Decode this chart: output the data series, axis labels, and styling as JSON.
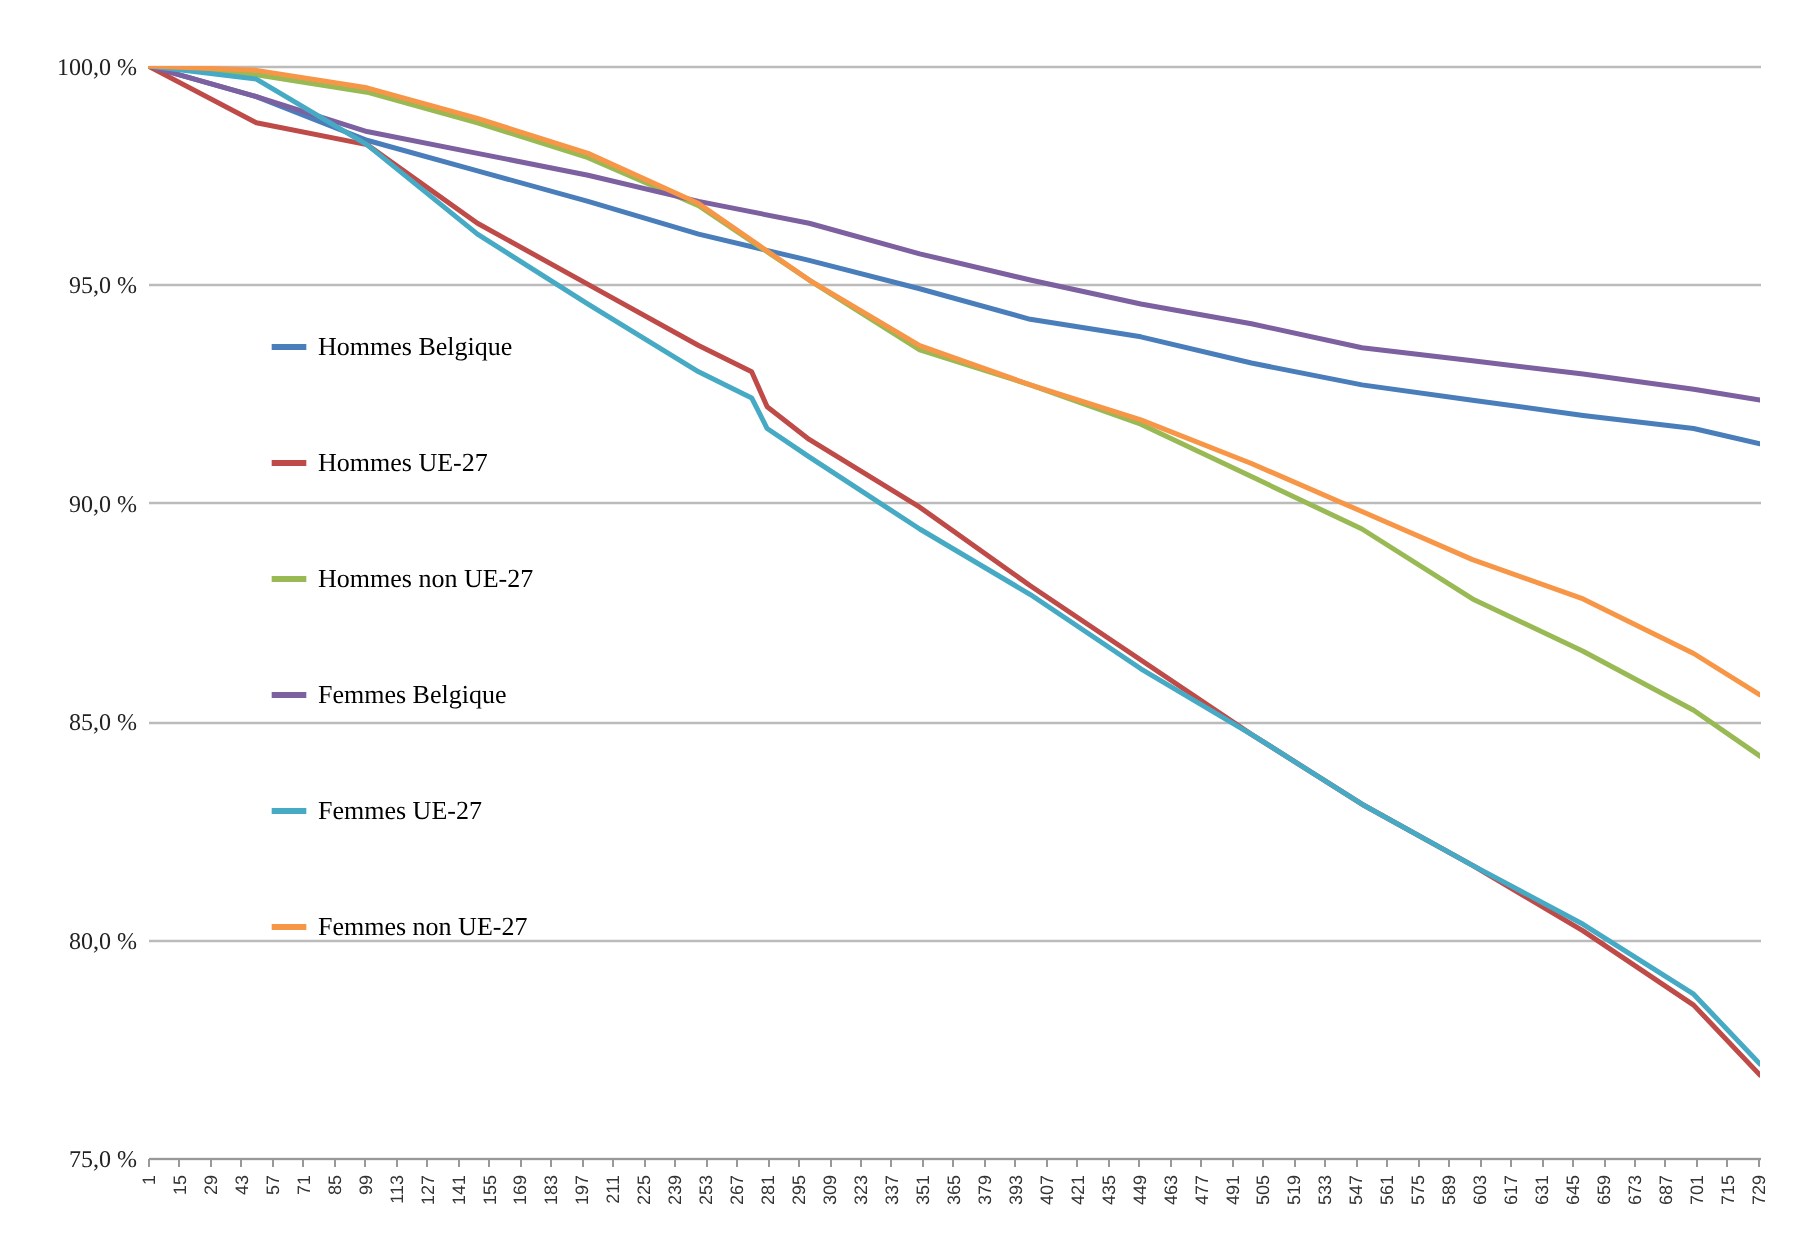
{
  "chart_data": {
    "type": "line",
    "xlim": [
      1,
      730
    ],
    "xticks": [
      1,
      15,
      29,
      43,
      57,
      71,
      85,
      99,
      113,
      127,
      141,
      155,
      169,
      183,
      197,
      211,
      225,
      239,
      253,
      267,
      281,
      295,
      309,
      323,
      337,
      351,
      365,
      379,
      393,
      407,
      421,
      435,
      449,
      463,
      477,
      491,
      505,
      519,
      533,
      547,
      561,
      575,
      589,
      603,
      617,
      631,
      645,
      659,
      673,
      687,
      701,
      715,
      729
    ],
    "ylim": [
      75,
      100
    ],
    "yticks": [
      {
        "value": 75,
        "label": "75,0 %"
      },
      {
        "value": 80,
        "label": "80,0 %"
      },
      {
        "value": 85,
        "label": "85,0 %"
      },
      {
        "value": 90,
        "label": "90,0 %"
      },
      {
        "value": 95,
        "label": "95,0 %"
      },
      {
        "value": 100,
        "label": "100,0 %"
      }
    ],
    "grid": "y",
    "legend": "left",
    "line_style": "solid",
    "marker": "none",
    "series": [
      {
        "name": "Hommes Belgique",
        "color": "#4a7ebb",
        "x": [
          1,
          50,
          100,
          150,
          200,
          250,
          300,
          350,
          400,
          450,
          500,
          550,
          600,
          650,
          700,
          730
        ],
        "values": [
          100,
          99.3,
          98.3,
          97.6,
          96.9,
          96.15,
          95.55,
          94.9,
          94.2,
          93.8,
          93.2,
          92.7,
          92.35,
          92.0,
          91.7,
          91.35
        ]
      },
      {
        "name": "Hommes UE-27",
        "color": "#be4b48",
        "x": [
          1,
          50,
          100,
          150,
          200,
          250,
          274,
          281,
          300,
          350,
          400,
          450,
          500,
          550,
          600,
          650,
          700,
          730
        ],
        "values": [
          100,
          98.7,
          98.2,
          96.4,
          95.0,
          93.6,
          93.0,
          92.2,
          91.45,
          89.9,
          88.1,
          86.4,
          84.7,
          83.1,
          81.7,
          80.2,
          78.5,
          76.9
        ]
      },
      {
        "name": "Hommes non UE-27",
        "color": "#98b954",
        "x": [
          1,
          50,
          100,
          150,
          200,
          250,
          300,
          350,
          400,
          450,
          500,
          550,
          600,
          650,
          700,
          730
        ],
        "values": [
          100,
          99.8,
          99.4,
          98.7,
          97.9,
          96.8,
          95.1,
          93.5,
          92.7,
          91.8,
          90.6,
          89.4,
          87.8,
          86.6,
          85.25,
          84.2
        ]
      },
      {
        "name": "Femmes Belgique",
        "color": "#7d60a0",
        "x": [
          1,
          50,
          100,
          150,
          200,
          250,
          300,
          350,
          400,
          450,
          500,
          550,
          600,
          650,
          700,
          730
        ],
        "values": [
          100,
          99.3,
          98.5,
          98.0,
          97.5,
          96.9,
          96.4,
          95.7,
          95.1,
          94.55,
          94.1,
          93.55,
          93.25,
          92.95,
          92.6,
          92.35
        ]
      },
      {
        "name": "Femmes UE-27",
        "color": "#46aac5",
        "x": [
          1,
          50,
          100,
          150,
          200,
          250,
          274,
          281,
          300,
          350,
          400,
          450,
          500,
          550,
          600,
          650,
          700,
          730
        ],
        "values": [
          100,
          99.7,
          98.2,
          96.15,
          94.55,
          93.0,
          92.4,
          91.7,
          91.05,
          89.4,
          87.9,
          86.2,
          84.7,
          83.1,
          81.7,
          80.35,
          78.75,
          77.15
        ]
      },
      {
        "name": "Femmes non UE-27",
        "color": "#f79646",
        "x": [
          1,
          50,
          100,
          150,
          200,
          250,
          300,
          350,
          400,
          450,
          500,
          550,
          600,
          650,
          700,
          730
        ],
        "values": [
          100,
          99.9,
          99.5,
          98.8,
          98.0,
          96.85,
          95.1,
          93.6,
          92.7,
          91.9,
          90.9,
          89.8,
          88.7,
          87.8,
          86.55,
          85.6
        ]
      }
    ]
  }
}
